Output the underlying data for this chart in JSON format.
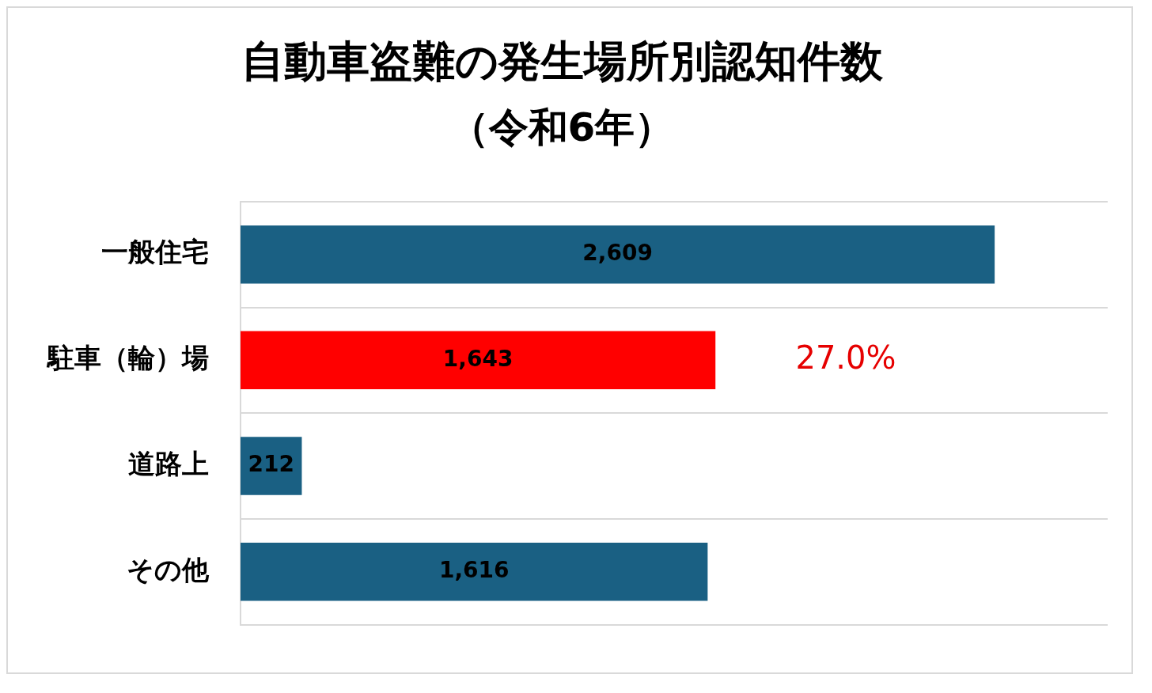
{
  "chart_data": {
    "type": "bar",
    "orientation": "horizontal",
    "title": "自動車盗難の発生場所別認知件数",
    "subtitle": "（令和6年）",
    "categories": [
      "一般住宅",
      "駐車（輪）場",
      "道路上",
      "その他"
    ],
    "values": [
      2609,
      1643,
      212,
      1616
    ],
    "colors": [
      "#1a6083",
      "#ff0000",
      "#1a6083",
      "#1a6083"
    ],
    "value_labels": [
      "2,609",
      "1,643",
      "212",
      "1,616"
    ],
    "annotations": [
      "27.0%"
    ],
    "grid": "y",
    "tick_labels": "y",
    "legend": false
  }
}
